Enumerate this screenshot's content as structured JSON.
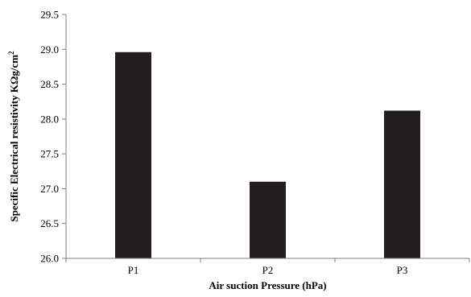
{
  "chart_data": {
    "type": "bar",
    "categories": [
      "P1",
      "P2",
      "P3"
    ],
    "values": [
      28.96,
      27.1,
      28.12
    ],
    "xlabel": "Air suction Pressure (hPa)",
    "ylabel_main": "Specific Electrical resistivity  KΩg/cm",
    "ylabel_sup": "2",
    "ylim": [
      26.0,
      29.5
    ],
    "yticks": [
      "26.0",
      "26.5",
      "27.0",
      "27.5",
      "28.0",
      "28.5",
      "29.0",
      "29.5"
    ],
    "grid": false,
    "bar_color": "#231f20",
    "axis_color": "#7f7f7f"
  }
}
